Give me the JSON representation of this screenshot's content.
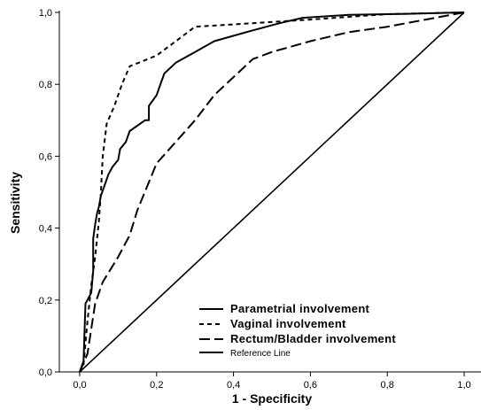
{
  "chart_data": {
    "type": "line",
    "title": "",
    "xlabel": "1 - Specificity",
    "ylabel": "Sensitivity",
    "xlim": [
      0,
      1
    ],
    "ylim": [
      0,
      1
    ],
    "x_ticks": [
      "0,0",
      "0,2",
      "0,4",
      "0,6",
      "0,8",
      "1,0"
    ],
    "y_ticks": [
      "0,0",
      "0,2",
      "0,4",
      "0,6",
      "0,8",
      "1,0"
    ],
    "grid": false,
    "legend_position": "bottom-right",
    "series": [
      {
        "name": "Parametrial involvement",
        "style": "solid",
        "color": "#000000",
        "points": [
          [
            0,
            0
          ],
          [
            0.01,
            0.03
          ],
          [
            0.015,
            0.19
          ],
          [
            0.03,
            0.22
          ],
          [
            0.035,
            0.28
          ],
          [
            0.035,
            0.37
          ],
          [
            0.04,
            0.41
          ],
          [
            0.045,
            0.44
          ],
          [
            0.05,
            0.46
          ],
          [
            0.055,
            0.49
          ],
          [
            0.065,
            0.52
          ],
          [
            0.075,
            0.55
          ],
          [
            0.085,
            0.57
          ],
          [
            0.1,
            0.59
          ],
          [
            0.105,
            0.62
          ],
          [
            0.12,
            0.64
          ],
          [
            0.13,
            0.67
          ],
          [
            0.17,
            0.7
          ],
          [
            0.18,
            0.7
          ],
          [
            0.18,
            0.74
          ],
          [
            0.2,
            0.77
          ],
          [
            0.21,
            0.8
          ],
          [
            0.22,
            0.83
          ],
          [
            0.25,
            0.86
          ],
          [
            0.3,
            0.89
          ],
          [
            0.35,
            0.92
          ],
          [
            0.45,
            0.95
          ],
          [
            0.52,
            0.97
          ],
          [
            0.58,
            0.985
          ],
          [
            0.7,
            0.993
          ],
          [
            0.85,
            0.996
          ],
          [
            1,
            1
          ]
        ]
      },
      {
        "name": "Vaginal involvement",
        "style": "short-dash",
        "color": "#000000",
        "points": [
          [
            0,
            0
          ],
          [
            0.01,
            0.02
          ],
          [
            0.015,
            0.08
          ],
          [
            0.02,
            0.14
          ],
          [
            0.03,
            0.24
          ],
          [
            0.04,
            0.32
          ],
          [
            0.05,
            0.42
          ],
          [
            0.055,
            0.5
          ],
          [
            0.06,
            0.6
          ],
          [
            0.07,
            0.69
          ],
          [
            0.09,
            0.74
          ],
          [
            0.11,
            0.8
          ],
          [
            0.13,
            0.85
          ],
          [
            0.2,
            0.88
          ],
          [
            0.25,
            0.92
          ],
          [
            0.3,
            0.96
          ],
          [
            0.45,
            0.97
          ],
          [
            0.6,
            0.98
          ],
          [
            0.8,
            0.995
          ],
          [
            1,
            1
          ]
        ]
      },
      {
        "name": "Rectum/Bladder involvement",
        "style": "long-dash",
        "color": "#000000",
        "points": [
          [
            0,
            0
          ],
          [
            0.02,
            0.05
          ],
          [
            0.04,
            0.19
          ],
          [
            0.06,
            0.25
          ],
          [
            0.1,
            0.32
          ],
          [
            0.13,
            0.38
          ],
          [
            0.15,
            0.45
          ],
          [
            0.2,
            0.58
          ],
          [
            0.25,
            0.64
          ],
          [
            0.3,
            0.7
          ],
          [
            0.35,
            0.77
          ],
          [
            0.4,
            0.82
          ],
          [
            0.45,
            0.87
          ],
          [
            0.5,
            0.89
          ],
          [
            0.6,
            0.92
          ],
          [
            0.7,
            0.945
          ],
          [
            0.8,
            0.96
          ],
          [
            0.9,
            0.98
          ],
          [
            1,
            1
          ]
        ]
      },
      {
        "name": "Reference Line",
        "style": "solid",
        "color": "#000000",
        "points": [
          [
            0,
            0
          ],
          [
            1,
            1
          ]
        ]
      }
    ]
  }
}
